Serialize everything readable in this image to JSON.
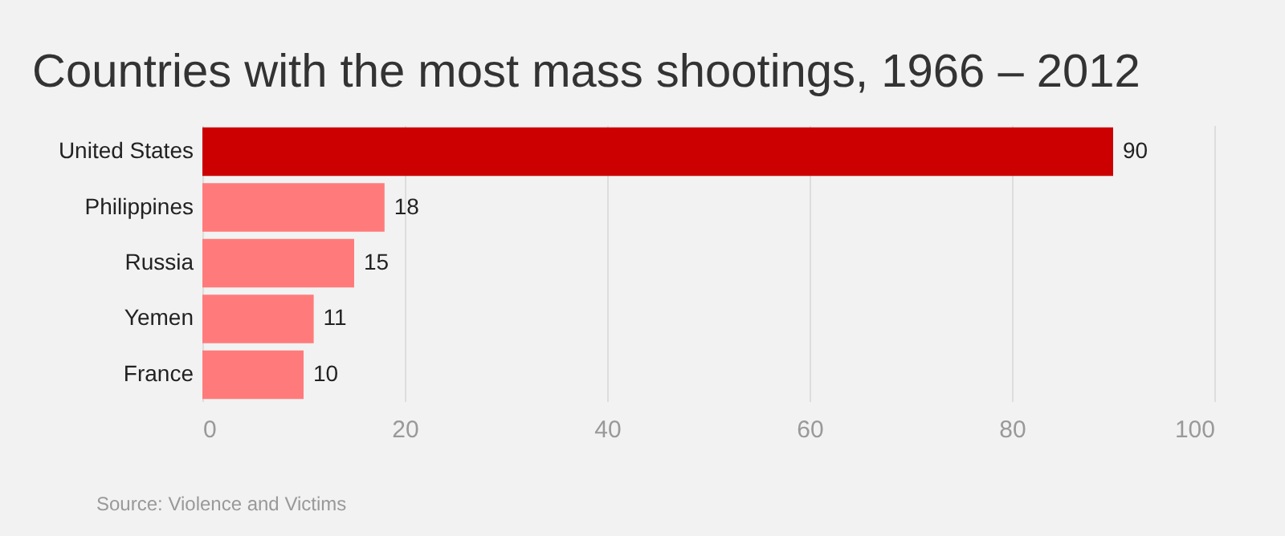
{
  "chart_data": {
    "type": "bar",
    "orientation": "horizontal",
    "title": "Countries with the most mass shootings, 1966 – 2012",
    "categories": [
      "United States",
      "Philippines",
      "Russia",
      "Yemen",
      "France"
    ],
    "values": [
      90,
      18,
      15,
      11,
      10
    ],
    "colors": [
      "#cc0000",
      "#ff7b7b",
      "#ff7b7b",
      "#ff7b7b",
      "#ff7b7b"
    ],
    "xlim": [
      0,
      100
    ],
    "xticks": [
      0,
      20,
      40,
      60,
      80,
      100
    ],
    "grid": "x",
    "data_labels": true,
    "annotations": [
      "Source: Violence and Victims"
    ]
  }
}
